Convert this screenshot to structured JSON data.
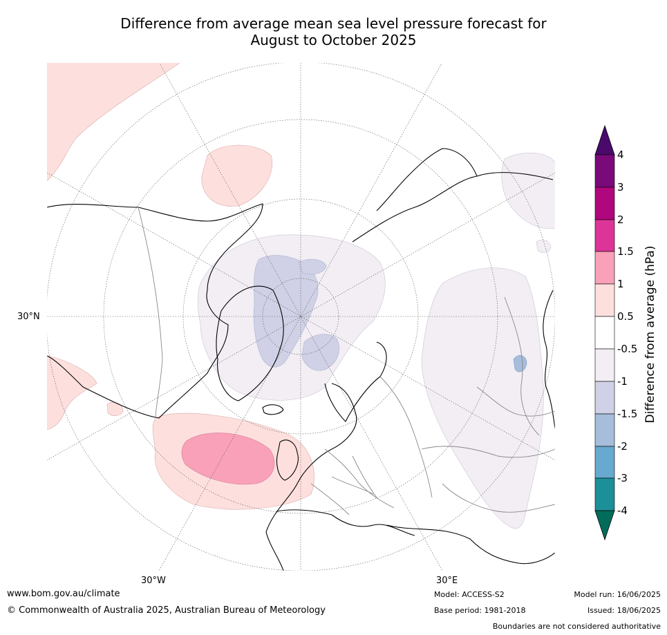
{
  "title": {
    "line1": "Difference from average mean sea level pressure forecast for",
    "line2": "August to October 2025"
  },
  "axis_labels": {
    "lat_30n": "30°N",
    "lon_30w": "30°W",
    "lon_30e": "30°E"
  },
  "colorbar": {
    "title": "Difference from average (hPa)",
    "ticks": [
      "4",
      "3",
      "2",
      "1.5",
      "1",
      "0.5",
      "-0.5",
      "-1",
      "-1.5",
      "-2",
      "-3",
      "-4"
    ],
    "colors": {
      "above_4": "#4a0a6b",
      "3_to_4": "#7a0a7a",
      "2_to_3": "#b0077e",
      "1.5_to_2": "#dd3497",
      "1_to_1.5": "#f9a1b8",
      "0.5_to_1": "#fde0de",
      "neutral": "#ffffff",
      "-1_to_-0.5": "#f2eef4",
      "-1.5_to_-1": "#d0d1e6",
      "-2_to_-1.5": "#a6bddb",
      "-3_to_-2": "#67a9cf",
      "-4_to_-3": "#1c9099",
      "below_-4": "#016c59"
    }
  },
  "footer": {
    "website": "www.bom.gov.au/climate",
    "copyright": "© Commonwealth of Australia 2025, Australian Bureau of Meteorology",
    "model": "Model: ACCESS-S2",
    "base_period": "Base period: 1981-2018",
    "model_run": "Model run: 16/06/2025",
    "issued": "Issued: 18/06/2025",
    "disclaimer": "Boundaries are not considered authoritative"
  }
}
